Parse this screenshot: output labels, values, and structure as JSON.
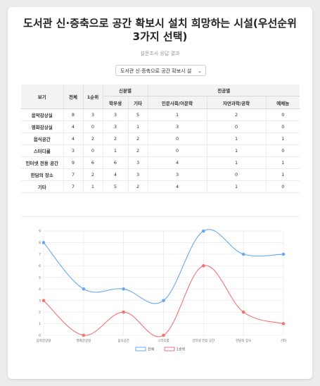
{
  "page": {
    "title": "도서관 신·증축으로 공간 확보시 설치 희망하는 시설(우선순위 3가지 선택)",
    "subtitle": "설문조사 응답 결과",
    "selector_value": "도서관 신·증축으로 공간 확보시 설"
  },
  "table": {
    "header_top": {
      "category": "보기",
      "total": "전체",
      "rank1": "1순위",
      "group_status": "신분별",
      "group_major": "전공별"
    },
    "header_sub": [
      "학부생",
      "기타",
      "인문사회/어문학",
      "자연과학/공학",
      "예체능"
    ],
    "rows": [
      {
        "label": "음악감상실",
        "total": "8",
        "rank1": "3",
        "undergrad": "3",
        "other": "5",
        "humanities": "1",
        "science": "2",
        "arts": "0"
      },
      {
        "label": "영화감상실",
        "total": "4",
        "rank1": "0",
        "undergrad": "3",
        "other": "1",
        "humanities": "3",
        "science": "0",
        "arts": "0"
      },
      {
        "label": "음식공간",
        "total": "4",
        "rank1": "2",
        "undergrad": "2",
        "other": "2",
        "humanities": "0",
        "science": "1",
        "arts": "1"
      },
      {
        "label": "스터디룸",
        "total": "3",
        "rank1": "0",
        "undergrad": "1",
        "other": "2",
        "humanities": "0",
        "science": "1",
        "arts": "0"
      },
      {
        "label": "인터넷 전용 공간",
        "total": "9",
        "rank1": "6",
        "undergrad": "6",
        "other": "3",
        "humanities": "4",
        "science": "1",
        "arts": "1"
      },
      {
        "label": "한담의 장소",
        "total": "7",
        "rank1": "2",
        "undergrad": "4",
        "other": "3",
        "humanities": "3",
        "science": "0",
        "arts": "1"
      },
      {
        "label": "기타",
        "total": "7",
        "rank1": "1",
        "undergrad": "5",
        "other": "2",
        "humanities": "4",
        "science": "1",
        "arts": "0"
      }
    ]
  },
  "chart_data": {
    "type": "line",
    "categories": [
      "음악감상실",
      "영화감상실",
      "음식공간",
      "스터디룸",
      "인터넷 전용 공간",
      "한담의 장소",
      "기타"
    ],
    "series": [
      {
        "name": "전체",
        "values": [
          8,
          4,
          4,
          3,
          9,
          7,
          7
        ],
        "color": "#6aa8f0"
      },
      {
        "name": "1순위",
        "values": [
          3,
          0,
          2,
          0,
          6,
          2,
          1
        ],
        "color": "#f07474"
      }
    ],
    "ylim": [
      0,
      9
    ],
    "yticks": [
      "0",
      "1",
      "2",
      "3",
      "4",
      "5",
      "6",
      "7",
      "8",
      "9"
    ],
    "grid": true,
    "smooth": true,
    "legend": "bottom-center"
  }
}
